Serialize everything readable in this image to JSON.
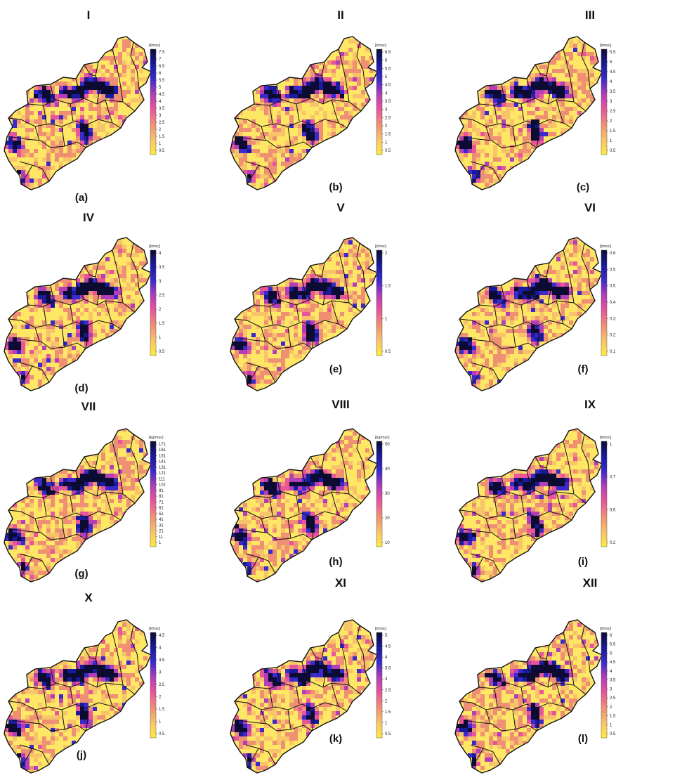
{
  "figure": {
    "colors": {
      "scale": [
        "#ffeb3b",
        "#f7c46a",
        "#ef8f73",
        "#e9559a",
        "#b23fb8",
        "#3b2ac9",
        "#1a1a9e",
        "#0b0b33"
      ],
      "background_cell": "#ffe766",
      "border": "#111111"
    },
    "panels": [
      {
        "roman": "I",
        "letter": "(a)",
        "unit": "[t/msc]",
        "ticks": [
          "7.5",
          "7",
          "6.5",
          "6",
          "5.5",
          "5",
          "4.5",
          "4",
          "3.5",
          "3",
          "2.5",
          "2",
          "1.5",
          "1",
          "0.5"
        ]
      },
      {
        "roman": "II",
        "letter": "(b)",
        "unit": "[t/msc]",
        "ticks": [
          "6.5",
          "6",
          "5.5",
          "5",
          "4.5",
          "4",
          "3.5",
          "3",
          "2.5",
          "2",
          "1.5",
          "1",
          "0.5"
        ]
      },
      {
        "roman": "III",
        "letter": "(c)",
        "unit": "[t/msc]",
        "ticks": [
          "5.5",
          "5",
          "4.5",
          "4",
          "3.5",
          "3",
          "2.5",
          "2",
          "1.5",
          "1",
          "0.5"
        ]
      },
      {
        "roman": "IV",
        "letter": "(d)",
        "unit": "[t/msc]",
        "ticks": [
          "4",
          "3.5",
          "3",
          "2.5",
          "2",
          "1.5",
          "1",
          "0.5"
        ]
      },
      {
        "roman": "V",
        "letter": "(e)",
        "unit": "[t/msc]",
        "ticks": [
          "2",
          "1.5",
          "1",
          "0.5"
        ]
      },
      {
        "roman": "VI",
        "letter": "(f)",
        "unit": "[t/msc]",
        "ticks": [
          "0.6",
          "0.5",
          "0.5",
          "0.4",
          "0.3",
          "0.2",
          "0.1"
        ]
      },
      {
        "roman": "VII",
        "letter": "(g)",
        "unit": "[kg/msc]",
        "ticks": [
          "171",
          "161",
          "151",
          "141",
          "131",
          "121",
          "111",
          "101",
          "91",
          "81",
          "71",
          "61",
          "51",
          "41",
          "31",
          "21",
          "11",
          "1"
        ]
      },
      {
        "roman": "VIII",
        "letter": "(h)",
        "unit": "[kg/msc]",
        "ticks": [
          "50",
          "40",
          "30",
          "20",
          "10"
        ]
      },
      {
        "roman": "IX",
        "letter": "(i)",
        "unit": "[t/msc]",
        "ticks": [
          "1",
          "0.7",
          "0.5",
          "0.2"
        ]
      },
      {
        "roman": "X",
        "letter": "(j)",
        "unit": "[t/msc]",
        "ticks": [
          "4.5",
          "4",
          "3.5",
          "3",
          "2.5",
          "2",
          "1.5",
          "1",
          "0.5"
        ]
      },
      {
        "roman": "XI",
        "letter": "(k)",
        "unit": "[t/msc]",
        "ticks": [
          "5",
          "4.5",
          "4",
          "3.5",
          "3",
          "2.5",
          "2",
          "1.5",
          "1",
          "0.5"
        ]
      },
      {
        "roman": "XII",
        "letter": "(l)",
        "unit": "[t/msc]",
        "ticks": [
          "6",
          "5.5",
          "5",
          "4.5",
          "4",
          "3.5",
          "3",
          "2.5",
          "2",
          "1.5",
          "1",
          "0.5"
        ]
      }
    ]
  }
}
